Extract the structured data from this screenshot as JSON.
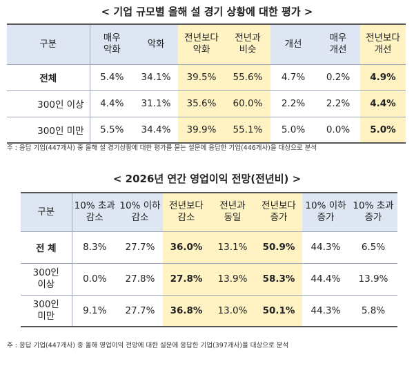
{
  "table1": {
    "title": "< 기업 규모별 올해 설 경기 상황에 대한 평가 >",
    "header_group": "구분",
    "headers": [
      "매우\n악화",
      "악화",
      "전년보다\n악화",
      "전년과\n비슷",
      "개선",
      "매우\n개선",
      "전년보다\n개선"
    ],
    "rows": [
      {
        "label": "전체",
        "values": [
          "5.4%",
          "34.1%",
          "39.5%",
          "55.6%",
          "4.7%",
          "0.2%",
          "4.9%"
        ]
      },
      {
        "label": "300인 이상",
        "values": [
          "4.4%",
          "31.1%",
          "35.6%",
          "60.0%",
          "2.2%",
          "2.2%",
          "4.4%"
        ]
      },
      {
        "label": "300인 미만",
        "values": [
          "5.5%",
          "34.4%",
          "39.9%",
          "55.1%",
          "5.0%",
          "0.0%",
          "5.0%"
        ]
      }
    ],
    "note": "주 : 응답 기업(447개사) 중 올해 설 경기상황에 대한 평가를 묻는 설문에 응답한 기업(446개사)을 대상으로 분석"
  },
  "table2": {
    "title": "< 2026년 연간 영업이익 전망(전년비) >",
    "header_group": "구분",
    "headers": [
      "10% 초과\n감소",
      "10% 이하\n감소",
      "전년보다\n감소",
      "전년과\n동일",
      "전년보다\n증가",
      "10% 이하\n증가",
      "10% 초과\n증가"
    ],
    "rows": [
      {
        "label": "전 체",
        "values": [
          "8.3%",
          "27.7%",
          "36.0%",
          "13.1%",
          "50.9%",
          "44.3%",
          "6.5%"
        ]
      },
      {
        "label": "300인\n이상",
        "values": [
          "0.0%",
          "27.8%",
          "27.8%",
          "13.9%",
          "58.3%",
          "44.4%",
          "13.9%"
        ]
      },
      {
        "label": "300인\n미만",
        "values": [
          "9.1%",
          "27.7%",
          "36.8%",
          "13.0%",
          "50.1%",
          "44.3%",
          "5.8%"
        ]
      }
    ],
    "note": "주 : 응답 기업(447개사) 중 올해 영업이익 전망에 대한 설문에 응답한 기업(397개사)을 대상으로 분석"
  }
}
